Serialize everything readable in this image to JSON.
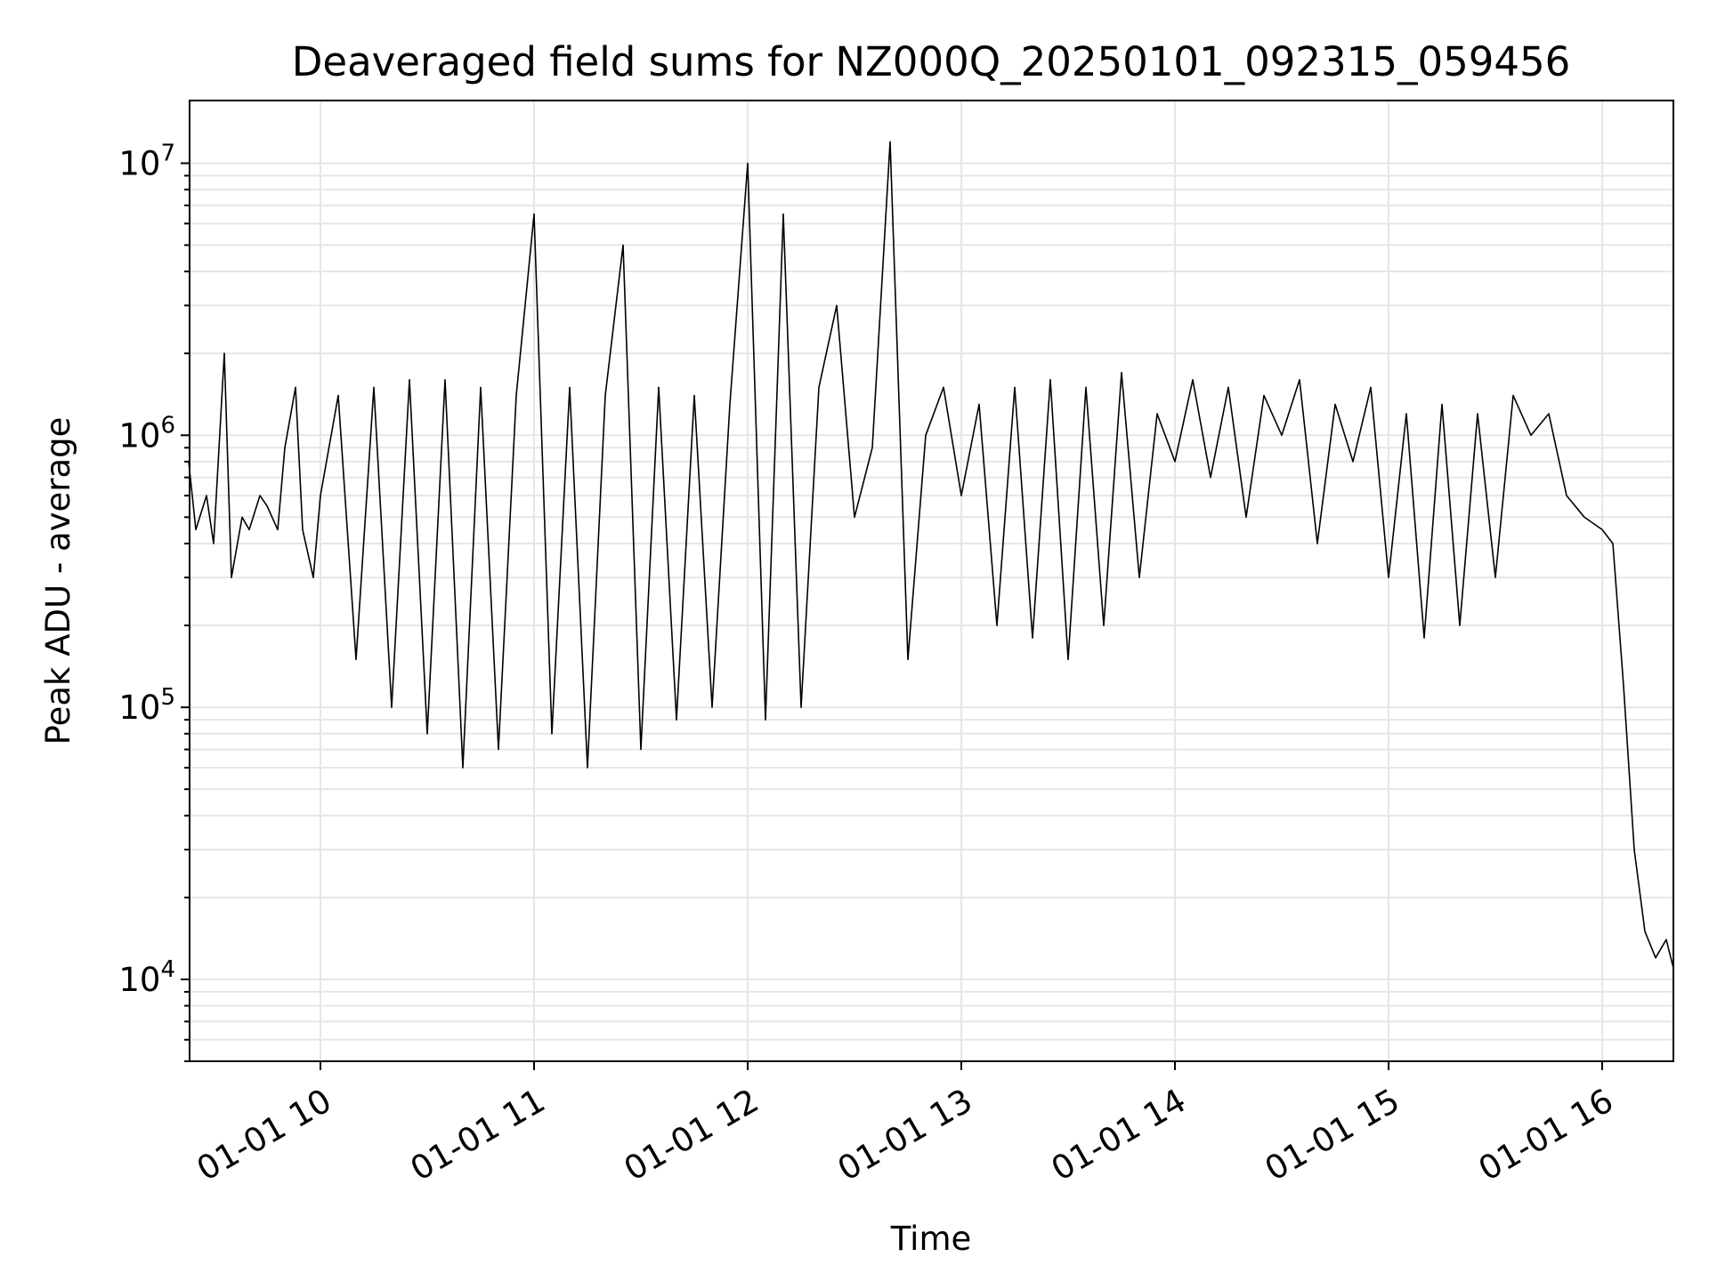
{
  "chart_data": {
    "type": "line",
    "title": "Deaveraged field sums for NZ000Q_20250101_092315_059456",
    "xlabel": "Time",
    "ylabel": "Peak ADU - average",
    "y_scale": "log",
    "grid": true,
    "line_color": "#000000",
    "grid_color": "#e6e6e6",
    "xlim": [
      "2025-01-01 09:23:15",
      "2025-01-01 16:20:00"
    ],
    "ylim": [
      5000,
      17000000
    ],
    "x_ticks": [
      {
        "value": "2025-01-01 10:00",
        "label": "01-01 10"
      },
      {
        "value": "2025-01-01 11:00",
        "label": "01-01 11"
      },
      {
        "value": "2025-01-01 12:00",
        "label": "01-01 12"
      },
      {
        "value": "2025-01-01 13:00",
        "label": "01-01 13"
      },
      {
        "value": "2025-01-01 14:00",
        "label": "01-01 14"
      },
      {
        "value": "2025-01-01 15:00",
        "label": "01-01 15"
      },
      {
        "value": "2025-01-01 16:00",
        "label": "01-01 16"
      }
    ],
    "y_ticks": [
      {
        "value": 10000,
        "base": "10",
        "exp": "4"
      },
      {
        "value": 100000,
        "base": "10",
        "exp": "5"
      },
      {
        "value": 1000000,
        "base": "10",
        "exp": "6"
      },
      {
        "value": 10000000,
        "base": "10",
        "exp": "7"
      }
    ],
    "series": [
      {
        "x": [
          "2025-01-01 09:23",
          "2025-01-01 09:25",
          "2025-01-01 09:28",
          "2025-01-01 09:30",
          "2025-01-01 09:33",
          "2025-01-01 09:35",
          "2025-01-01 09:38",
          "2025-01-01 09:40",
          "2025-01-01 09:43",
          "2025-01-01 09:45",
          "2025-01-01 09:48",
          "2025-01-01 09:50",
          "2025-01-01 09:53",
          "2025-01-01 09:55",
          "2025-01-01 09:58",
          "2025-01-01 10:00",
          "2025-01-01 10:05",
          "2025-01-01 10:10",
          "2025-01-01 10:15",
          "2025-01-01 10:20",
          "2025-01-01 10:25",
          "2025-01-01 10:30",
          "2025-01-01 10:35",
          "2025-01-01 10:40",
          "2025-01-01 10:45",
          "2025-01-01 10:50",
          "2025-01-01 10:55",
          "2025-01-01 11:00",
          "2025-01-01 11:05",
          "2025-01-01 11:10",
          "2025-01-01 11:15",
          "2025-01-01 11:20",
          "2025-01-01 11:25",
          "2025-01-01 11:30",
          "2025-01-01 11:35",
          "2025-01-01 11:40",
          "2025-01-01 11:45",
          "2025-01-01 11:50",
          "2025-01-01 11:55",
          "2025-01-01 12:00",
          "2025-01-01 12:05",
          "2025-01-01 12:10",
          "2025-01-01 12:15",
          "2025-01-01 12:20",
          "2025-01-01 12:25",
          "2025-01-01 12:30",
          "2025-01-01 12:35",
          "2025-01-01 12:40",
          "2025-01-01 12:45",
          "2025-01-01 12:50",
          "2025-01-01 12:55",
          "2025-01-01 13:00",
          "2025-01-01 13:05",
          "2025-01-01 13:10",
          "2025-01-01 13:15",
          "2025-01-01 13:20",
          "2025-01-01 13:25",
          "2025-01-01 13:30",
          "2025-01-01 13:35",
          "2025-01-01 13:40",
          "2025-01-01 13:45",
          "2025-01-01 13:50",
          "2025-01-01 13:55",
          "2025-01-01 14:00",
          "2025-01-01 14:05",
          "2025-01-01 14:10",
          "2025-01-01 14:15",
          "2025-01-01 14:20",
          "2025-01-01 14:25",
          "2025-01-01 14:30",
          "2025-01-01 14:35",
          "2025-01-01 14:40",
          "2025-01-01 14:45",
          "2025-01-01 14:50",
          "2025-01-01 14:55",
          "2025-01-01 15:00",
          "2025-01-01 15:05",
          "2025-01-01 15:10",
          "2025-01-01 15:15",
          "2025-01-01 15:20",
          "2025-01-01 15:25",
          "2025-01-01 15:30",
          "2025-01-01 15:35",
          "2025-01-01 15:40",
          "2025-01-01 15:45",
          "2025-01-01 15:50",
          "2025-01-01 15:55",
          "2025-01-01 16:00",
          "2025-01-01 16:03",
          "2025-01-01 16:06",
          "2025-01-01 16:09",
          "2025-01-01 16:12",
          "2025-01-01 16:15",
          "2025-01-01 16:18",
          "2025-01-01 16:20"
        ],
        "y": [
          800000,
          450000,
          600000,
          400000,
          2000000,
          300000,
          500000,
          450000,
          600000,
          550000,
          450000,
          900000,
          1500000,
          450000,
          300000,
          600000,
          1400000,
          150000,
          1500000,
          100000,
          1600000,
          80000,
          1600000,
          60000,
          1500000,
          70000,
          1400000,
          6500000,
          80000,
          1500000,
          60000,
          1400000,
          5000000,
          70000,
          1500000,
          90000,
          1400000,
          100000,
          1300000,
          10000000,
          90000,
          6500000,
          100000,
          1500000,
          3000000,
          500000,
          900000,
          12000000,
          150000,
          1000000,
          1500000,
          600000,
          1300000,
          200000,
          1500000,
          180000,
          1600000,
          150000,
          1500000,
          200000,
          1700000,
          300000,
          1200000,
          800000,
          1600000,
          700000,
          1500000,
          500000,
          1400000,
          1000000,
          1600000,
          400000,
          1300000,
          800000,
          1500000,
          300000,
          1200000,
          180000,
          1300000,
          200000,
          1200000,
          300000,
          1400000,
          1000000,
          1200000,
          600000,
          500000,
          450000,
          400000,
          120000,
          30000,
          15000,
          12000,
          14000,
          11000
        ]
      }
    ]
  }
}
